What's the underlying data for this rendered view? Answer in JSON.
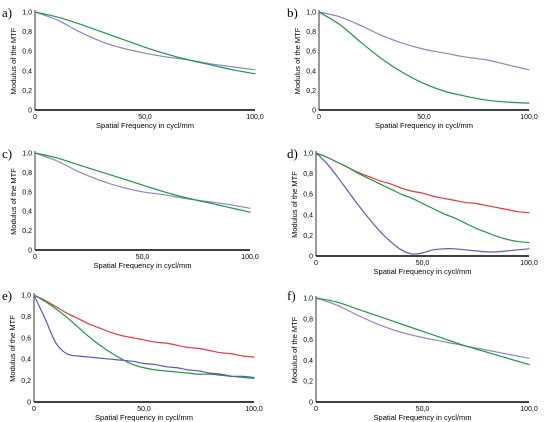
{
  "figure": {
    "colors": {
      "blue": "#8a84c4",
      "green": "#22934a",
      "red": "#e03a3a",
      "dark_blue": "#5f59b4"
    }
  },
  "chart_data": [
    {
      "panel": "a)",
      "type": "line",
      "xlabel": "Spatial Frequency in cycl/mm",
      "ylabel": "Modulus of the MTF",
      "xlim": [
        0,
        100
      ],
      "ylim": [
        0,
        1
      ],
      "xticks": [
        "0",
        "50,0",
        "100,0"
      ],
      "yticks": [
        "0",
        "0,2",
        "0,4",
        "0,6",
        "0,8",
        "1,0"
      ],
      "x": [
        0,
        10,
        20,
        30,
        40,
        50,
        60,
        70,
        80,
        90,
        100
      ],
      "series": [
        {
          "color": "blue",
          "values": [
            1.0,
            0.92,
            0.8,
            0.7,
            0.63,
            0.58,
            0.54,
            0.51,
            0.47,
            0.44,
            0.41
          ]
        },
        {
          "color": "green",
          "values": [
            1.0,
            0.95,
            0.88,
            0.8,
            0.72,
            0.64,
            0.57,
            0.51,
            0.46,
            0.41,
            0.37
          ]
        }
      ]
    },
    {
      "panel": "b)",
      "type": "line",
      "xlabel": "Spatial Frequency in cycl/mm",
      "ylabel": "Modulus of the MTF",
      "xlim": [
        0,
        100
      ],
      "ylim": [
        0,
        1
      ],
      "xticks": [
        "0",
        "50,0",
        "100,0"
      ],
      "yticks": [
        "0",
        "0,2",
        "0,4",
        "0,6",
        "0,8",
        "1,0"
      ],
      "x": [
        0,
        10,
        20,
        30,
        40,
        50,
        60,
        70,
        80,
        90,
        100
      ],
      "series": [
        {
          "color": "blue",
          "values": [
            1.0,
            0.95,
            0.86,
            0.76,
            0.68,
            0.62,
            0.58,
            0.54,
            0.51,
            0.46,
            0.41
          ]
        },
        {
          "color": "green",
          "values": [
            1.0,
            0.87,
            0.69,
            0.52,
            0.38,
            0.27,
            0.19,
            0.14,
            0.1,
            0.08,
            0.07
          ]
        }
      ]
    },
    {
      "panel": "c)",
      "type": "line",
      "xlabel": "Spatial Frequency in cycl/mm",
      "ylabel": "Modulus of the MTF",
      "xlim": [
        0,
        100
      ],
      "ylim": [
        0,
        1
      ],
      "xticks": [
        "0",
        "50,0",
        "100,0"
      ],
      "yticks": [
        "0",
        "0,2",
        "0,4",
        "0,6",
        "0,8",
        "1,0"
      ],
      "x": [
        0,
        10,
        20,
        30,
        40,
        50,
        60,
        70,
        80,
        90,
        100
      ],
      "series": [
        {
          "color": "blue",
          "values": [
            1.0,
            0.92,
            0.81,
            0.72,
            0.65,
            0.6,
            0.57,
            0.53,
            0.5,
            0.47,
            0.43
          ]
        },
        {
          "color": "green",
          "values": [
            1.0,
            0.95,
            0.88,
            0.81,
            0.74,
            0.67,
            0.6,
            0.54,
            0.49,
            0.44,
            0.39
          ]
        }
      ]
    },
    {
      "panel": "d)",
      "type": "line",
      "xlabel": "Spatial Frequency in cycl/mm",
      "ylabel": "Modulus of the MTF",
      "xlim": [
        0,
        100
      ],
      "ylim": [
        0,
        1
      ],
      "xticks": [
        "0",
        "50,0",
        "100,0"
      ],
      "yticks": [
        "0",
        "0,2",
        "0,4",
        "0,6",
        "0,8",
        "1,0"
      ],
      "x": [
        0,
        5,
        10,
        15,
        20,
        25,
        30,
        35,
        40,
        45,
        50,
        55,
        60,
        65,
        70,
        75,
        80,
        85,
        90,
        95,
        100
      ],
      "series": [
        {
          "color": "red",
          "values": [
            1.0,
            0.96,
            0.91,
            0.86,
            0.81,
            0.77,
            0.73,
            0.7,
            0.66,
            0.63,
            0.61,
            0.58,
            0.56,
            0.54,
            0.52,
            0.51,
            0.49,
            0.47,
            0.45,
            0.43,
            0.42
          ]
        },
        {
          "color": "green",
          "values": [
            1.0,
            0.96,
            0.91,
            0.86,
            0.8,
            0.75,
            0.7,
            0.65,
            0.6,
            0.56,
            0.51,
            0.46,
            0.41,
            0.37,
            0.32,
            0.27,
            0.23,
            0.19,
            0.16,
            0.14,
            0.13
          ]
        },
        {
          "color": "dark_blue",
          "values": [
            1.0,
            0.9,
            0.77,
            0.63,
            0.49,
            0.36,
            0.24,
            0.14,
            0.06,
            0.02,
            0.03,
            0.06,
            0.07,
            0.07,
            0.06,
            0.05,
            0.04,
            0.04,
            0.05,
            0.06,
            0.07
          ]
        }
      ]
    },
    {
      "panel": "e)",
      "type": "line",
      "xlabel": "Spatial Frequency in cycl/mm",
      "ylabel": "Modulus of the MTF",
      "xlim": [
        0,
        100
      ],
      "ylim": [
        0,
        1
      ],
      "xticks": [
        "0",
        "50,0",
        "100,0"
      ],
      "yticks": [
        "0",
        "0,2",
        "0,4",
        "0,6",
        "0,8",
        "1,0"
      ],
      "x": [
        0,
        5,
        10,
        15,
        20,
        25,
        30,
        35,
        40,
        45,
        50,
        55,
        60,
        65,
        70,
        75,
        80,
        85,
        90,
        95,
        100
      ],
      "series": [
        {
          "color": "red",
          "values": [
            1.0,
            0.95,
            0.89,
            0.83,
            0.78,
            0.73,
            0.69,
            0.65,
            0.62,
            0.6,
            0.58,
            0.56,
            0.55,
            0.53,
            0.51,
            0.5,
            0.48,
            0.46,
            0.45,
            0.43,
            0.42
          ]
        },
        {
          "color": "green",
          "values": [
            1.0,
            0.94,
            0.87,
            0.79,
            0.7,
            0.61,
            0.53,
            0.46,
            0.4,
            0.35,
            0.32,
            0.3,
            0.29,
            0.28,
            0.27,
            0.26,
            0.26,
            0.25,
            0.24,
            0.24,
            0.23
          ]
        },
        {
          "color": "dark_blue",
          "values": [
            1.0,
            0.78,
            0.55,
            0.45,
            0.43,
            0.42,
            0.41,
            0.4,
            0.39,
            0.38,
            0.36,
            0.35,
            0.33,
            0.32,
            0.3,
            0.29,
            0.27,
            0.26,
            0.24,
            0.23,
            0.22
          ]
        }
      ]
    },
    {
      "panel": "f)",
      "type": "line",
      "xlabel": "Spatial Frequency in cycl/mm",
      "ylabel": "Modulus of the MTF",
      "xlim": [
        0,
        100
      ],
      "ylim": [
        0,
        1
      ],
      "xticks": [
        "0",
        "50,0",
        "100,0"
      ],
      "yticks": [
        "0",
        "0,2",
        "0,4",
        "0,6",
        "0,8",
        "1,0"
      ],
      "x": [
        0,
        10,
        20,
        30,
        40,
        50,
        60,
        70,
        80,
        90,
        100
      ],
      "series": [
        {
          "color": "blue",
          "values": [
            1.0,
            0.93,
            0.83,
            0.74,
            0.67,
            0.62,
            0.58,
            0.54,
            0.5,
            0.46,
            0.42
          ]
        },
        {
          "color": "green",
          "values": [
            1.0,
            0.96,
            0.89,
            0.82,
            0.75,
            0.68,
            0.61,
            0.54,
            0.48,
            0.42,
            0.36
          ]
        }
      ]
    }
  ]
}
